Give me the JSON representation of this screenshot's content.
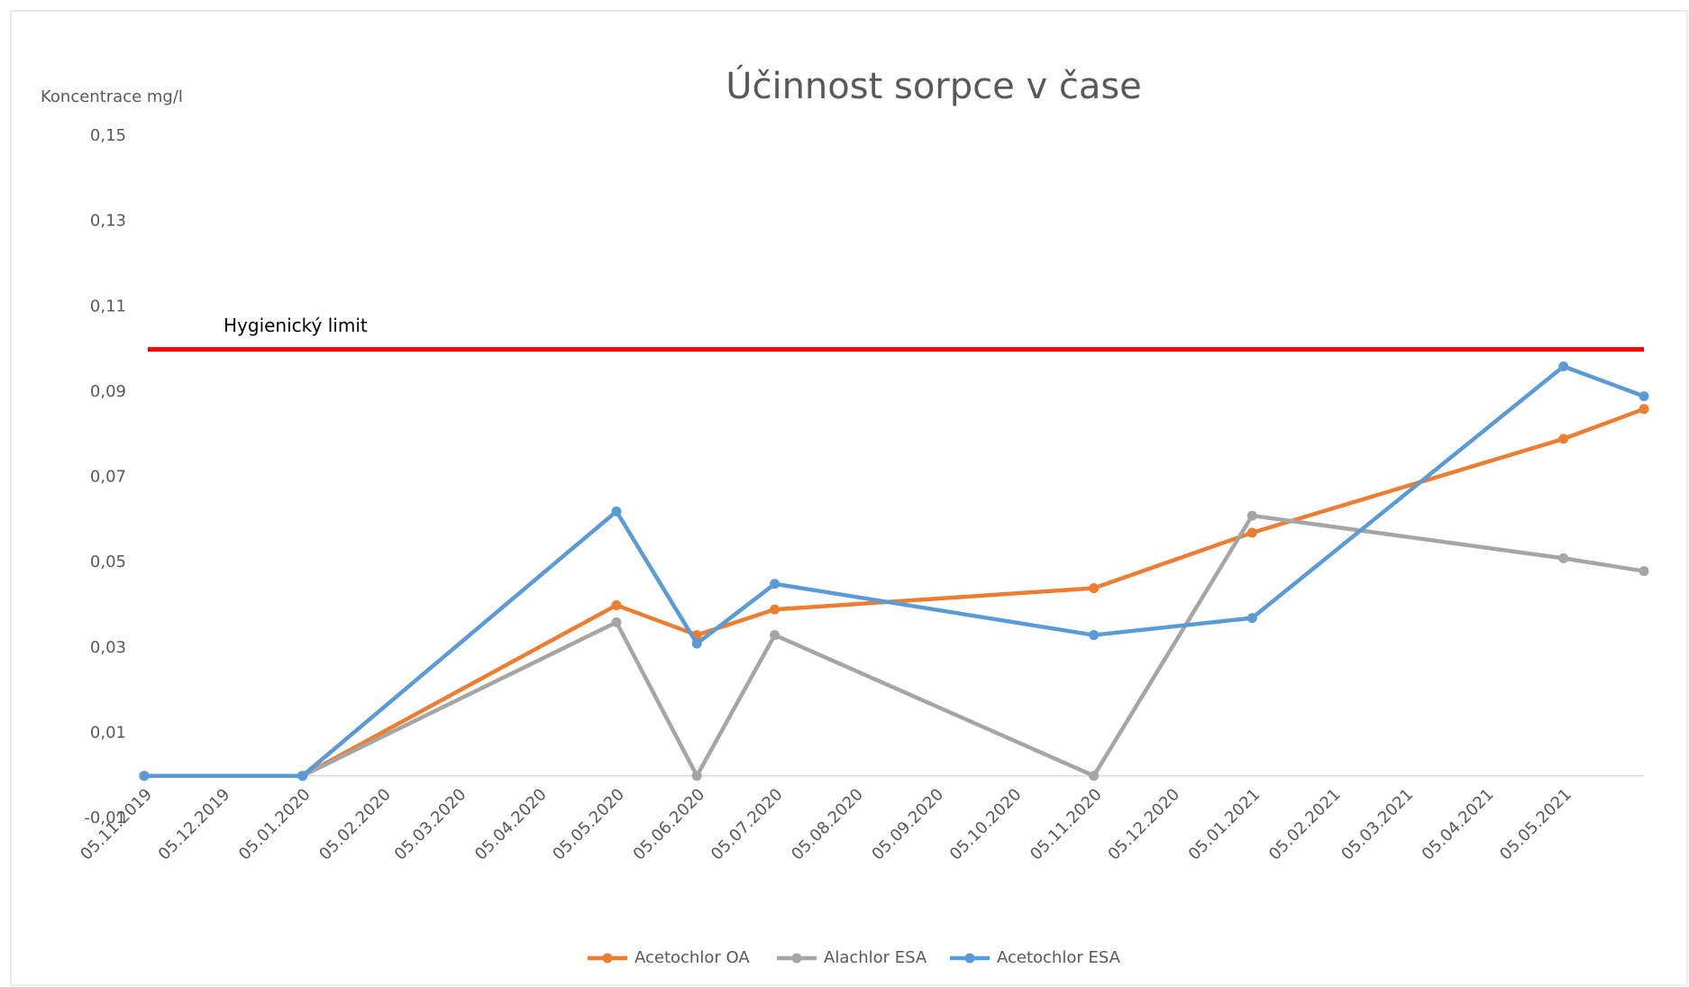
{
  "chart_data": {
    "type": "line",
    "title": "Účinnost sorpce v čase",
    "y_label": "Koncentrace mg/l",
    "x": [
      "05.11.2019",
      "05.01.2020",
      "05.05.2020",
      "05.06.2020",
      "05.07.2020",
      "05.11.2020",
      "05.01.2021",
      "05.05.2021",
      "05.06.2021"
    ],
    "series": [
      {
        "name": "Acetochlor OA",
        "color": "#ed7d31",
        "values": [
          0,
          0,
          0.04,
          0.033,
          0.039,
          0.044,
          0.057,
          0.079,
          0.086
        ]
      },
      {
        "name": "Alachlor ESA",
        "color": "#a5a5a5",
        "values": [
          0,
          0,
          0.036,
          0,
          0.033,
          0,
          0.061,
          0.051,
          0.048
        ]
      },
      {
        "name": "Acetochlor ESA",
        "color": "#5b9bd5",
        "values": [
          0,
          0,
          0.062,
          0.031,
          0.045,
          0.033,
          0.037,
          0.096,
          0.089
        ]
      }
    ],
    "limit": {
      "label": "Hygienický limit",
      "value": 0.1,
      "color": "#ff0000"
    },
    "xlim": [
      "05.11.2019",
      "05.06.2021"
    ],
    "xticks": [
      "05.11.2019",
      "05.12.2019",
      "05.01.2020",
      "05.02.2020",
      "05.03.2020",
      "05.04.2020",
      "05.05.2020",
      "05.06.2020",
      "05.07.2020",
      "05.08.2020",
      "05.09.2020",
      "05.10.2020",
      "05.11.2020",
      "05.12.2020",
      "05.01.2021",
      "05.02.2021",
      "05.03.2021",
      "05.04.2021",
      "05.05.2021"
    ],
    "ylim": [
      -0.01,
      0.15
    ],
    "yticks": [
      {
        "value": -0.01,
        "label": "-0,01"
      },
      {
        "value": 0.01,
        "label": "0,01"
      },
      {
        "value": 0.03,
        "label": "0,03"
      },
      {
        "value": 0.05,
        "label": "0,05"
      },
      {
        "value": 0.07,
        "label": "0,07"
      },
      {
        "value": 0.09,
        "label": "0,09"
      },
      {
        "value": 0.11,
        "label": "0,11"
      },
      {
        "value": 0.13,
        "label": "0,13"
      },
      {
        "value": 0.15,
        "label": "0,15"
      }
    ],
    "legend": "bottom"
  }
}
